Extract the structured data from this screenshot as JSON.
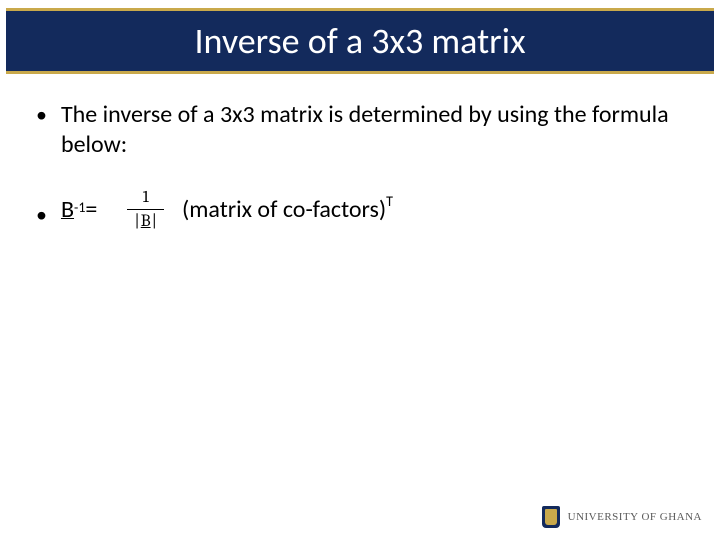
{
  "colors": {
    "band_bg": "#132a5c",
    "band_border": "#c9a94b",
    "title_text": "#ffffff",
    "body_text": "#000000",
    "footer_text": "#5a5a5a",
    "page_bg": "#ffffff"
  },
  "title": "Inverse of a 3x3 matrix",
  "bullets": {
    "intro": "The inverse of a 3x3 matrix is determined by using the formula below:"
  },
  "formula": {
    "lhs_base": "B",
    "lhs_exp": "-1",
    "equals": " = ",
    "fraction": {
      "numerator": "1",
      "denom_left_bar": "|",
      "denom_base": "B",
      "denom_right_bar": "|"
    },
    "rhs_text": "(matrix of co-factors)",
    "rhs_exp": "T"
  },
  "footer": {
    "org": "UNIVERSITY OF GHANA"
  }
}
